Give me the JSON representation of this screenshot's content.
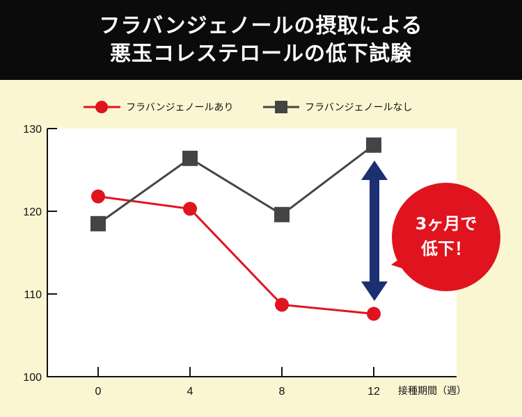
{
  "header": {
    "title_line1": "フラバンジェノールの摂取による",
    "title_line2": "悪玉コレステロールの低下試験"
  },
  "legend": {
    "with_label": "フラバンジェノールあり",
    "without_label": "フラバンジェノールなし"
  },
  "x_unit_label": "接種期間（週）",
  "callout": {
    "line1": "3ヶ月で",
    "line2": "低下！"
  },
  "colors": {
    "background": "#fbf6d2",
    "header_bg": "#0b0b0b",
    "with_series": "#e0141e",
    "without_series": "#444444",
    "arrow": "#1c2f73",
    "callout": "#e0141e"
  },
  "chart_data": {
    "type": "line",
    "x": [
      0,
      4,
      8,
      12
    ],
    "x_ticks": [
      "0",
      "4",
      "8",
      "12"
    ],
    "y_ticks": [
      "100",
      "110",
      "120",
      "130"
    ],
    "ylim": [
      100,
      130
    ],
    "grid": false,
    "legend_position": "top",
    "series": [
      {
        "name": "フラバンジェノールあり",
        "values": [
          121.8,
          120.3,
          108.7,
          107.6
        ],
        "marker": "circle"
      },
      {
        "name": "フラバンジェノールなし",
        "values": [
          118.5,
          126.4,
          119.6,
          128.0
        ],
        "marker": "square"
      }
    ]
  }
}
